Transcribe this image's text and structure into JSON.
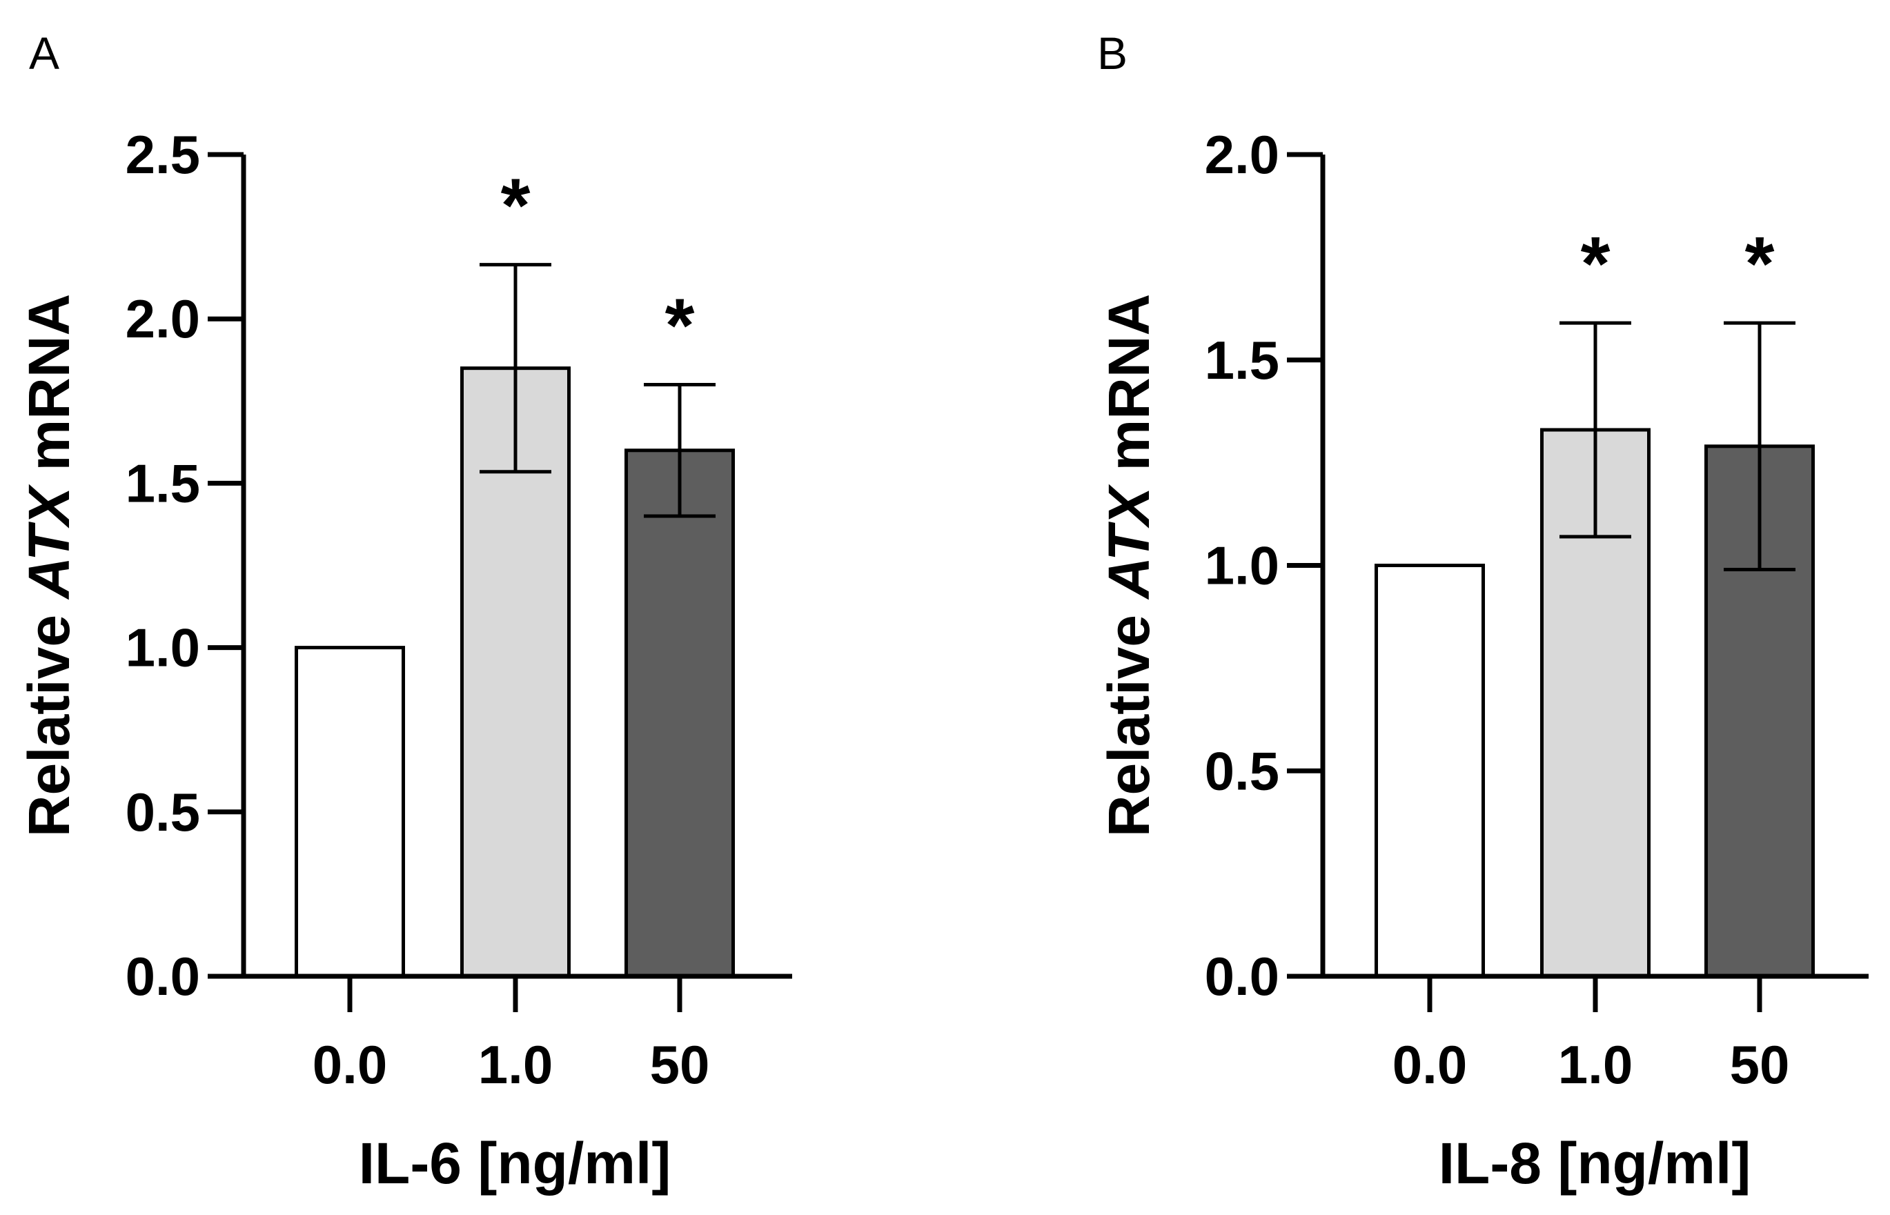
{
  "chart_data": [
    {
      "panel_label": "A",
      "type": "bar",
      "title": "",
      "categories": [
        "0.0",
        "1.0",
        "50"
      ],
      "values": [
        1.0,
        1.85,
        1.6
      ],
      "errors": [
        0,
        0.315,
        0.2
      ],
      "significance": [
        "",
        "*",
        "*"
      ],
      "bar_colors": [
        "#ffffff",
        "#d9d9d9",
        "#5e5e5e"
      ],
      "xlabel": "IL-6 [ng/ml]",
      "ylabel_pre": "Relative ",
      "ylabel_gene": "ATX",
      "ylabel_post": " mRNA",
      "ylim": [
        0,
        2.5
      ],
      "yticks": [
        0.0,
        0.5,
        1.0,
        1.5,
        2.0,
        2.5
      ],
      "ytick_labels": [
        "0.0",
        "0.5",
        "1.0",
        "1.5",
        "2.0",
        "2.5"
      ],
      "grid": false
    },
    {
      "panel_label": "B",
      "type": "bar",
      "title": "",
      "categories": [
        "0.0",
        "1.0",
        "50"
      ],
      "values": [
        1.0,
        1.33,
        1.29
      ],
      "errors": [
        0,
        0.26,
        0.3
      ],
      "significance": [
        "",
        "*",
        "*"
      ],
      "bar_colors": [
        "#ffffff",
        "#d9d9d9",
        "#5e5e5e"
      ],
      "xlabel": "IL-8 [ng/ml]",
      "ylabel_pre": "Relative ",
      "ylabel_gene": "ATX",
      "ylabel_post": " mRNA",
      "ylim": [
        0,
        2.0
      ],
      "yticks": [
        0.0,
        0.5,
        1.0,
        1.5,
        2.0
      ],
      "ytick_labels": [
        "0.0",
        "0.5",
        "1.0",
        "1.5",
        "2.0"
      ],
      "grid": false
    }
  ]
}
